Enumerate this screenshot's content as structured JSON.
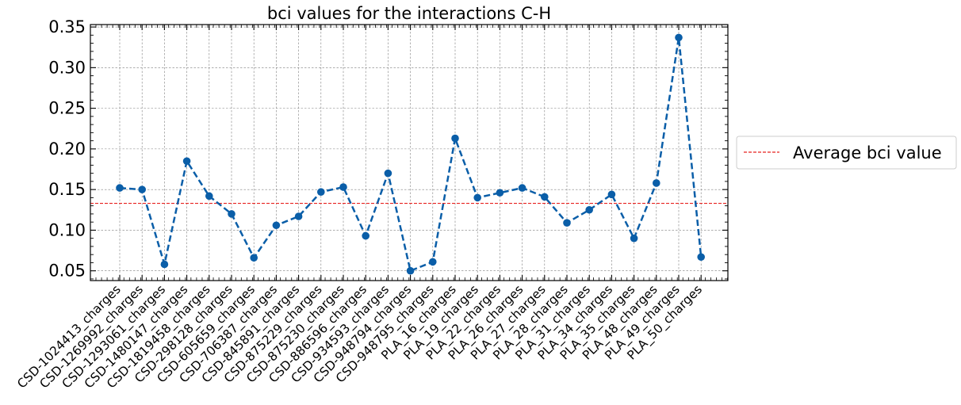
{
  "chart_data": {
    "type": "line",
    "title": "bci values for the interactions C-H",
    "xlabel": "",
    "ylabel": "",
    "categories": [
      "CSD-1024413_charges",
      "CSD-1269992_charges",
      "CSD-1293061_charges",
      "CSD-1480147_charges",
      "CSD-1819458_charges",
      "CSD-298128_charges",
      "CSD-605659_charges",
      "CSD-706387_charges",
      "CSD-845891_charges",
      "CSD-875229_charges",
      "CSD-875230_charges",
      "CSD-886596_charges",
      "CSD-934593_charges",
      "CSD-948794_charges",
      "CSD-948795_charges",
      "PLA_16_charges",
      "PLA_19_charges",
      "PLA_22_charges",
      "PLA_26_charges",
      "PLA_27_charges",
      "PLA_28_charges",
      "PLA_31_charges",
      "PLA_34_charges",
      "PLA_35_charges",
      "PLA_48_charges",
      "PLA_49_charges",
      "PLA_50_charges"
    ],
    "values": [
      0.152,
      0.15,
      0.058,
      0.185,
      0.142,
      0.12,
      0.066,
      0.106,
      0.117,
      0.147,
      0.153,
      0.093,
      0.17,
      0.05,
      0.061,
      0.213,
      0.14,
      0.146,
      0.152,
      0.141,
      0.109,
      0.125,
      0.144,
      0.09,
      0.158,
      0.337,
      0.067
    ],
    "average": 0.133,
    "ylim": [
      0.038,
      0.353
    ],
    "yticks": [
      "0.05",
      "0.10",
      "0.15",
      "0.20",
      "0.25",
      "0.30",
      "0.35"
    ],
    "grid": true,
    "legend": {
      "position": "center-right outside",
      "entries": [
        "Average bci value"
      ]
    },
    "colors": {
      "series": "#0a5ea8",
      "average": "#e8221f",
      "grid": "#7f7f7f"
    }
  }
}
